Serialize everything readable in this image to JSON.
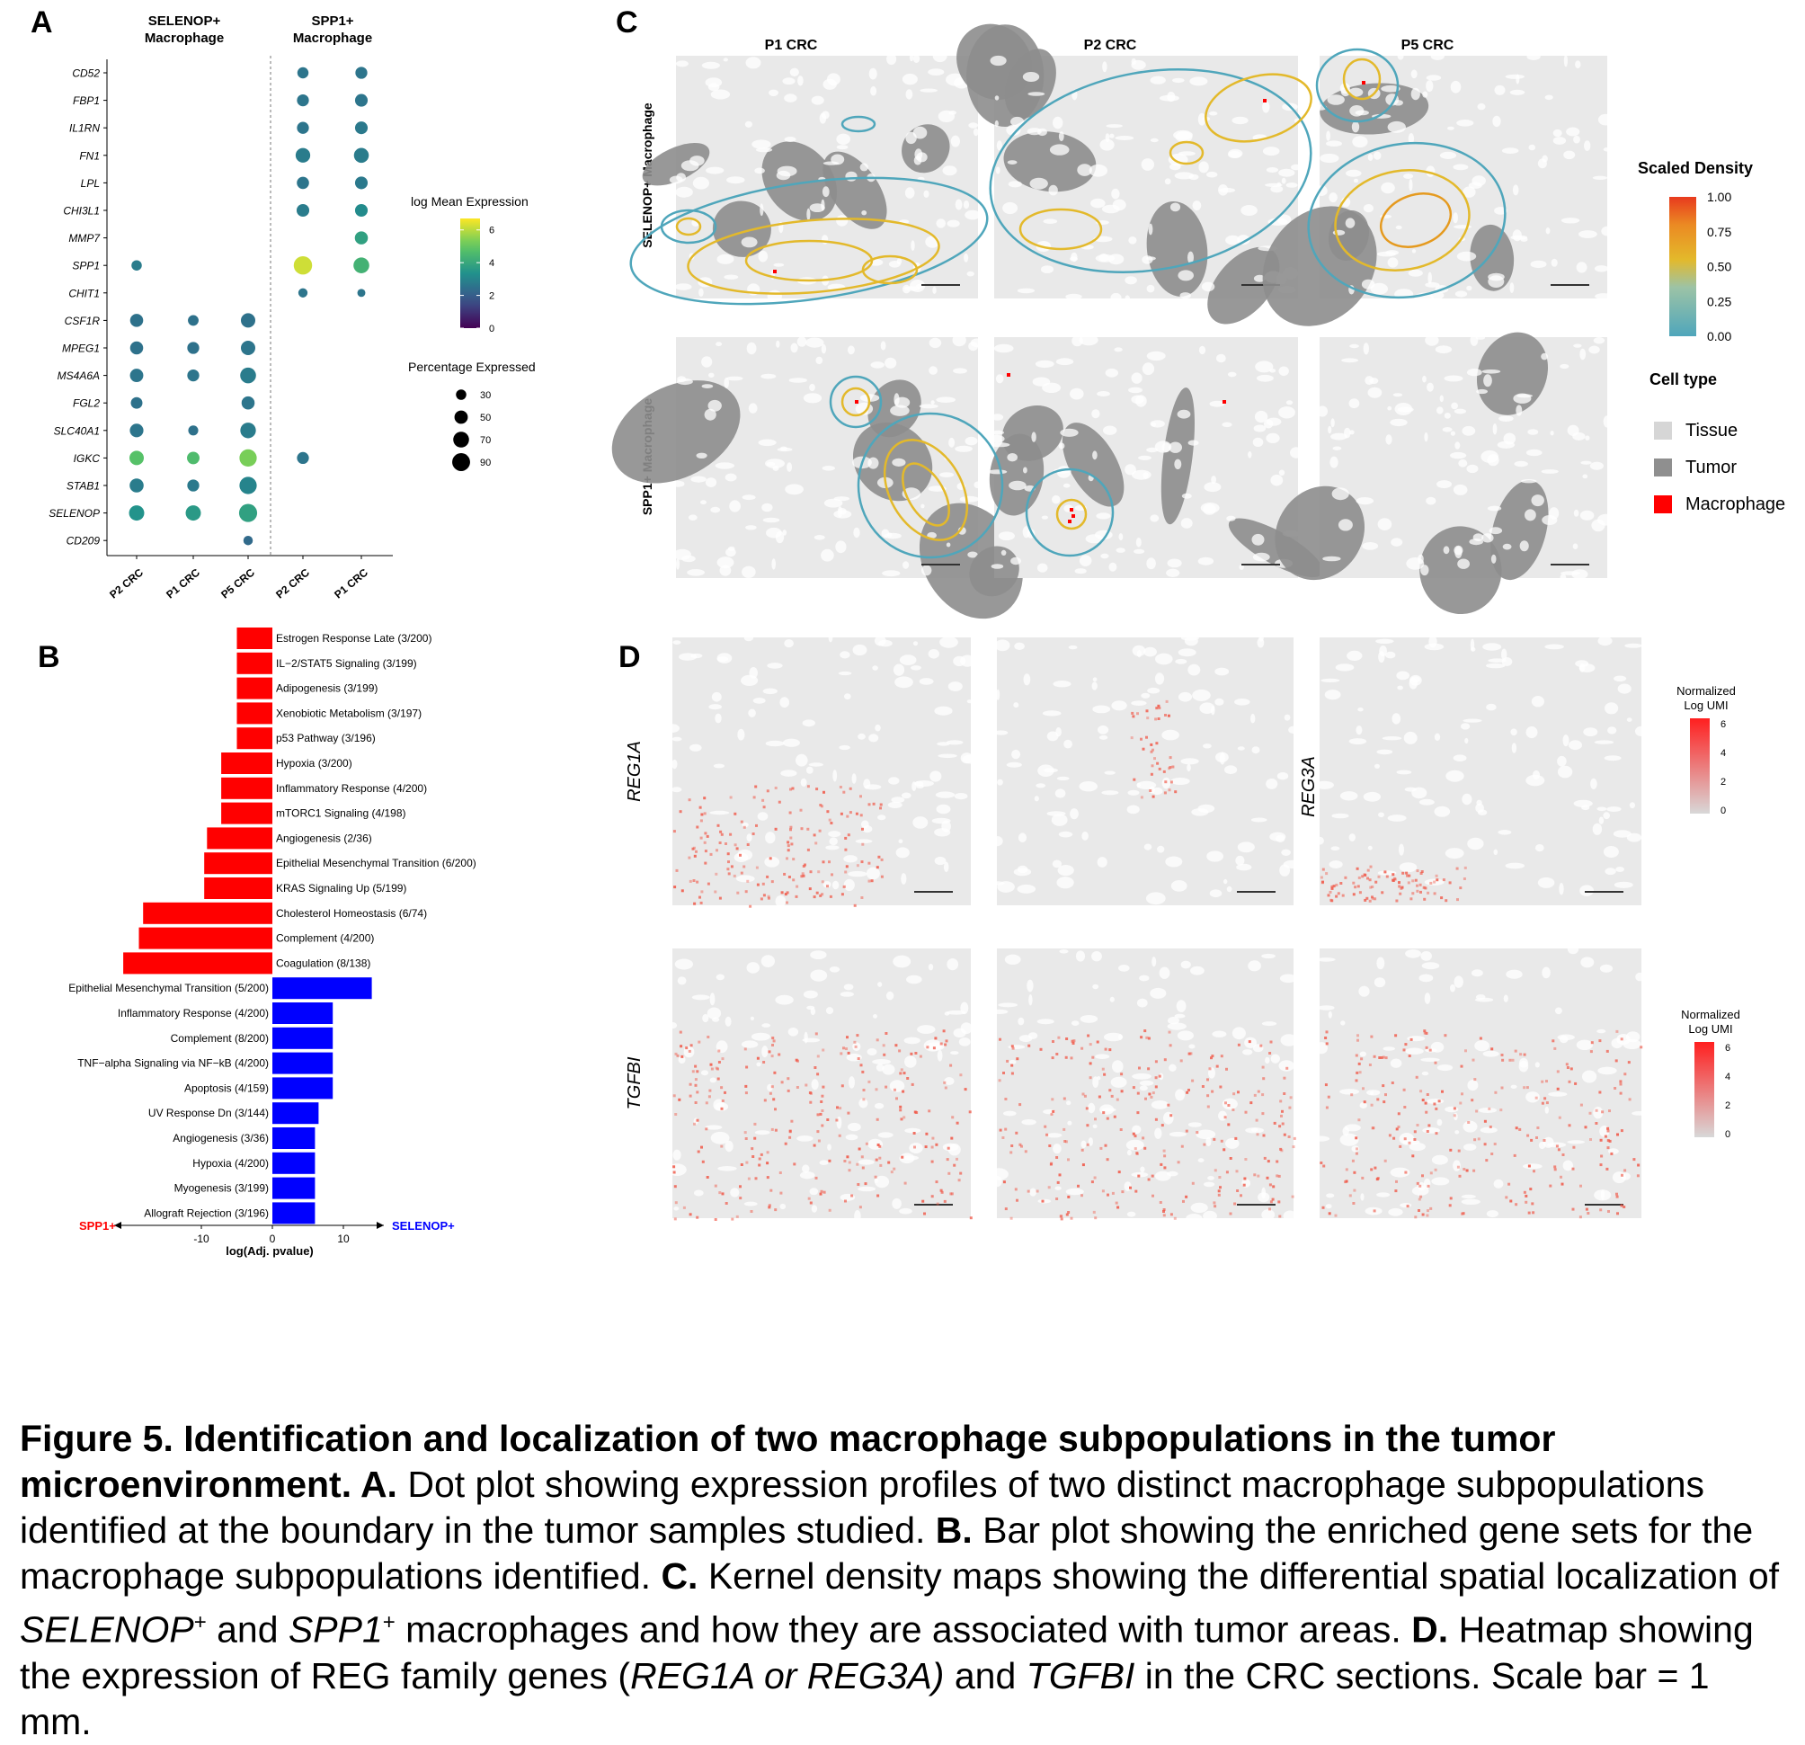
{
  "panel_labels": {
    "a": "A",
    "b": "B",
    "c": "C",
    "d": "D"
  },
  "chart_data": [
    {
      "id": "A",
      "type": "scatter",
      "kind": "dot-plot",
      "group_headers": [
        "SELENOP+ Macrophage",
        "SPP1+ Macrophage"
      ],
      "x_categories": [
        "P2 CRC",
        "P1 CRC",
        "P5 CRC",
        "P2 CRC",
        "P1 CRC"
      ],
      "genes": [
        "CD52",
        "FBP1",
        "IL1RN",
        "FN1",
        "LPL",
        "CHI3L1",
        "MMP7",
        "SPP1",
        "CHIT1",
        "CSF1R",
        "MPEG1",
        "MS4A6A",
        "FGL2",
        "SLC40A1",
        "IGKC",
        "STAB1",
        "SELENOP",
        "CD209"
      ],
      "color_legend": {
        "title": "log Mean Expression",
        "ticks": [
          6,
          4,
          2,
          0
        ],
        "range": [
          0,
          6.7
        ]
      },
      "size_legend": {
        "title": "Percentage Expressed",
        "values": [
          30,
          50,
          70,
          90
        ]
      },
      "points": [
        {
          "gene": "CD52",
          "x": 3,
          "expr": 2.6,
          "pct": 35
        },
        {
          "gene": "CD52",
          "x": 4,
          "expr": 2.6,
          "pct": 40
        },
        {
          "gene": "FBP1",
          "x": 3,
          "expr": 2.6,
          "pct": 40
        },
        {
          "gene": "FBP1",
          "x": 4,
          "expr": 2.6,
          "pct": 45
        },
        {
          "gene": "IL1RN",
          "x": 3,
          "expr": 2.6,
          "pct": 40
        },
        {
          "gene": "IL1RN",
          "x": 4,
          "expr": 2.7,
          "pct": 45
        },
        {
          "gene": "FN1",
          "x": 3,
          "expr": 2.8,
          "pct": 60
        },
        {
          "gene": "FN1",
          "x": 4,
          "expr": 2.8,
          "pct": 62
        },
        {
          "gene": "LPL",
          "x": 3,
          "expr": 2.6,
          "pct": 42
        },
        {
          "gene": "LPL",
          "x": 4,
          "expr": 2.7,
          "pct": 45
        },
        {
          "gene": "CHI3L1",
          "x": 3,
          "expr": 2.8,
          "pct": 45
        },
        {
          "gene": "CHI3L1",
          "x": 4,
          "expr": 3.2,
          "pct": 45
        },
        {
          "gene": "MMP7",
          "x": 4,
          "expr": 3.8,
          "pct": 48
        },
        {
          "gene": "SPP1",
          "x": 0,
          "expr": 2.8,
          "pct": 30
        },
        {
          "gene": "SPP1",
          "x": 3,
          "expr": 6.2,
          "pct": 95
        },
        {
          "gene": "SPP1",
          "x": 4,
          "expr": 4.3,
          "pct": 70
        },
        {
          "gene": "CHIT1",
          "x": 3,
          "expr": 2.6,
          "pct": 24
        },
        {
          "gene": "CHIT1",
          "x": 4,
          "expr": 2.6,
          "pct": 18
        },
        {
          "gene": "CSF1R",
          "x": 0,
          "expr": 2.5,
          "pct": 48
        },
        {
          "gene": "CSF1R",
          "x": 1,
          "expr": 2.5,
          "pct": 32
        },
        {
          "gene": "CSF1R",
          "x": 2,
          "expr": 2.5,
          "pct": 58
        },
        {
          "gene": "MPEG1",
          "x": 0,
          "expr": 2.5,
          "pct": 48
        },
        {
          "gene": "MPEG1",
          "x": 1,
          "expr": 2.5,
          "pct": 40
        },
        {
          "gene": "MPEG1",
          "x": 2,
          "expr": 2.6,
          "pct": 58
        },
        {
          "gene": "MS4A6A",
          "x": 0,
          "expr": 2.6,
          "pct": 50
        },
        {
          "gene": "MS4A6A",
          "x": 1,
          "expr": 2.6,
          "pct": 40
        },
        {
          "gene": "MS4A6A",
          "x": 2,
          "expr": 2.8,
          "pct": 70
        },
        {
          "gene": "FGL2",
          "x": 0,
          "expr": 2.5,
          "pct": 38
        },
        {
          "gene": "FGL2",
          "x": 2,
          "expr": 2.6,
          "pct": 48
        },
        {
          "gene": "SLC40A1",
          "x": 0,
          "expr": 2.6,
          "pct": 52
        },
        {
          "gene": "SLC40A1",
          "x": 1,
          "expr": 2.5,
          "pct": 28
        },
        {
          "gene": "SLC40A1",
          "x": 2,
          "expr": 2.8,
          "pct": 68
        },
        {
          "gene": "IGKC",
          "x": 0,
          "expr": 4.8,
          "pct": 58
        },
        {
          "gene": "IGKC",
          "x": 1,
          "expr": 4.6,
          "pct": 44
        },
        {
          "gene": "IGKC",
          "x": 2,
          "expr": 5.3,
          "pct": 84
        },
        {
          "gene": "IGKC",
          "x": 3,
          "expr": 2.6,
          "pct": 40
        },
        {
          "gene": "STAB1",
          "x": 0,
          "expr": 2.8,
          "pct": 55
        },
        {
          "gene": "STAB1",
          "x": 1,
          "expr": 2.7,
          "pct": 40
        },
        {
          "gene": "STAB1",
          "x": 2,
          "expr": 3.0,
          "pct": 84
        },
        {
          "gene": "SELENOP",
          "x": 0,
          "expr": 3.4,
          "pct": 65
        },
        {
          "gene": "SELENOP",
          "x": 1,
          "expr": 3.6,
          "pct": 65
        },
        {
          "gene": "SELENOP",
          "x": 2,
          "expr": 3.8,
          "pct": 92
        },
        {
          "gene": "CD209",
          "x": 2,
          "expr": 2.3,
          "pct": 25
        }
      ]
    },
    {
      "id": "B",
      "type": "bar",
      "orientation": "horizontal",
      "xlabel": "log(Adj. pvalue)",
      "x_ticks": [
        -10,
        0,
        10
      ],
      "xlim": [
        -21.5,
        15.5
      ],
      "left_arrow_label": "SPP1+",
      "right_arrow_label": "SELENOP+",
      "colors": {
        "SPP1+": "#ff0000",
        "SELENOP+": "#0000ff"
      },
      "bars": [
        {
          "label": "Estrogen Response Late (3/200)",
          "value": -5,
          "group": "SPP1+"
        },
        {
          "label": "IL−2/STAT5 Signaling (3/199)",
          "value": -5,
          "group": "SPP1+"
        },
        {
          "label": "Adipogenesis (3/199)",
          "value": -5,
          "group": "SPP1+"
        },
        {
          "label": "Xenobiotic Metabolism (3/197)",
          "value": -5,
          "group": "SPP1+"
        },
        {
          "label": "p53 Pathway (3/196)",
          "value": -5,
          "group": "SPP1+"
        },
        {
          "label": "Hypoxia (3/200)",
          "value": -7.2,
          "group": "SPP1+"
        },
        {
          "label": "Inflammatory Response (4/200)",
          "value": -7.2,
          "group": "SPP1+"
        },
        {
          "label": "mTORC1 Signaling (4/198)",
          "value": -7.2,
          "group": "SPP1+"
        },
        {
          "label": "Angiogenesis (2/36)",
          "value": -9.2,
          "group": "SPP1+"
        },
        {
          "label": "Epithelial Mesenchymal Transition (6/200)",
          "value": -9.6,
          "group": "SPP1+"
        },
        {
          "label": "KRAS Signaling Up (5/199)",
          "value": -9.6,
          "group": "SPP1+"
        },
        {
          "label": "Cholesterol Homeostasis (6/74)",
          "value": -18.2,
          "group": "SPP1+"
        },
        {
          "label": "Complement (4/200)",
          "value": -18.8,
          "group": "SPP1+"
        },
        {
          "label": "Coagulation (8/138)",
          "value": -21,
          "group": "SPP1+"
        },
        {
          "label": "Epithelial Mesenchymal Transition (5/200)",
          "value": 14,
          "group": "SELENOP+"
        },
        {
          "label": "Inflammatory Response (4/200)",
          "value": 8.5,
          "group": "SELENOP+"
        },
        {
          "label": "Complement (8/200)",
          "value": 8.5,
          "group": "SELENOP+"
        },
        {
          "label": "TNF−alpha Signaling via NF−kB (4/200)",
          "value": 8.5,
          "group": "SELENOP+"
        },
        {
          "label": "Apoptosis (4/159)",
          "value": 8.5,
          "group": "SELENOP+"
        },
        {
          "label": "UV Response Dn (3/144)",
          "value": 6.5,
          "group": "SELENOP+"
        },
        {
          "label": "Angiogenesis (3/36)",
          "value": 6,
          "group": "SELENOP+"
        },
        {
          "label": "Hypoxia (4/200)",
          "value": 6,
          "group": "SELENOP+"
        },
        {
          "label": "Myogenesis (3/199)",
          "value": 6,
          "group": "SELENOP+"
        },
        {
          "label": "Allograft Rejection (3/196)",
          "value": 6,
          "group": "SELENOP+"
        }
      ]
    }
  ],
  "panel_c": {
    "columns": [
      "P1 CRC",
      "P2 CRC",
      "P5 CRC"
    ],
    "rows": [
      "SELENOP+ Macrophage",
      "SPP1+ Macrophage"
    ],
    "density_legend": {
      "title": "Scaled Density",
      "ticks": [
        "1.00",
        "0.75",
        "0.50",
        "0.25",
        "0.00"
      ]
    },
    "celltype_legend": {
      "title": "Cell type",
      "items": [
        {
          "label": "Tissue",
          "color": "#d6d6d6"
        },
        {
          "label": "Tumor",
          "color": "#8f8f8f"
        },
        {
          "label": "Macrophage",
          "color": "#ff0000"
        }
      ]
    }
  },
  "panel_d": {
    "gene_labels": [
      "REG1A",
      "REG3A",
      "TGFBI"
    ],
    "legend": {
      "title_line1": "Normalized",
      "title_line2": "Log UMI",
      "ticks": [
        "6",
        "4",
        "2",
        "0"
      ]
    }
  },
  "caption": {
    "t1": "Figure 5. Identification and localization of two macrophage subpopulations in the tumor microenvironment. A.",
    "t2": " Dot plot showing expression profiles of two distinct macrophage subpopulations identified at the boundary in the tumor samples studied. ",
    "t3": "B.",
    "t4": " Bar plot showing the enriched gene sets for the macrophage subpopulations identified. ",
    "t5": "C.",
    "t6": " Kernel density maps showing the differential spatial localization of ",
    "t7": "SELENOP",
    "t8": "+",
    "t9": " and ",
    "t10": "SPP1",
    "t11": "+",
    "t12": " macrophages and how they are associated with tumor areas. ",
    "t13": "D.",
    "t14": " Heatmap showing the expression of REG family genes (",
    "t15": "REG1A or REG3A)",
    "t16": " and ",
    "t17": "TGFBI",
    "t18": " in the CRC sections. Scale bar = 1 mm."
  }
}
